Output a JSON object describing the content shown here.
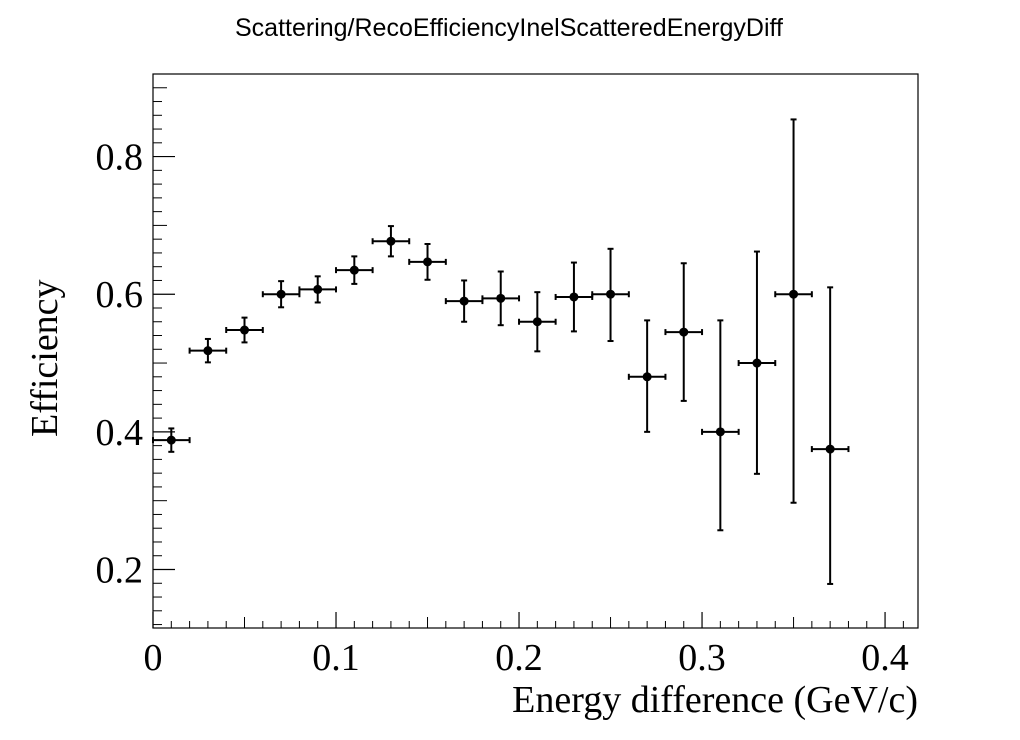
{
  "chart_data": {
    "type": "scatter",
    "title": "Scattering/RecoEfficiencyInelScatteredEnergyDiff",
    "xlabel": "Energy difference (GeV/c)",
    "ylabel": "Efficiency",
    "xlim": [
      0,
      0.418
    ],
    "ylim": [
      0.115,
      0.92
    ],
    "x_ticks": [
      0,
      0.1,
      0.2,
      0.3,
      0.4
    ],
    "x_tick_labels": [
      "0",
      "0.1",
      "0.2",
      "0.3",
      "0.4"
    ],
    "y_ticks": [
      0.2,
      0.4,
      0.6,
      0.8
    ],
    "y_tick_labels": [
      "0.2",
      "0.4",
      "0.6",
      "0.8"
    ],
    "grid": false,
    "legend": "none",
    "marker_color": "#000000",
    "points": [
      {
        "x": 0.01,
        "x_err": 0.01,
        "y": 0.388,
        "y_err_low": 0.017,
        "y_err_high": 0.017
      },
      {
        "x": 0.03,
        "x_err": 0.01,
        "y": 0.518,
        "y_err_low": 0.017,
        "y_err_high": 0.017
      },
      {
        "x": 0.05,
        "x_err": 0.01,
        "y": 0.548,
        "y_err_low": 0.018,
        "y_err_high": 0.018
      },
      {
        "x": 0.07,
        "x_err": 0.01,
        "y": 0.6,
        "y_err_low": 0.019,
        "y_err_high": 0.019
      },
      {
        "x": 0.09,
        "x_err": 0.01,
        "y": 0.607,
        "y_err_low": 0.019,
        "y_err_high": 0.019
      },
      {
        "x": 0.11,
        "x_err": 0.01,
        "y": 0.635,
        "y_err_low": 0.02,
        "y_err_high": 0.02
      },
      {
        "x": 0.13,
        "x_err": 0.01,
        "y": 0.677,
        "y_err_low": 0.022,
        "y_err_high": 0.022
      },
      {
        "x": 0.15,
        "x_err": 0.01,
        "y": 0.647,
        "y_err_low": 0.026,
        "y_err_high": 0.026
      },
      {
        "x": 0.17,
        "x_err": 0.01,
        "y": 0.59,
        "y_err_low": 0.03,
        "y_err_high": 0.03
      },
      {
        "x": 0.19,
        "x_err": 0.01,
        "y": 0.594,
        "y_err_low": 0.039,
        "y_err_high": 0.039
      },
      {
        "x": 0.21,
        "x_err": 0.01,
        "y": 0.56,
        "y_err_low": 0.043,
        "y_err_high": 0.043
      },
      {
        "x": 0.23,
        "x_err": 0.01,
        "y": 0.596,
        "y_err_low": 0.05,
        "y_err_high": 0.05
      },
      {
        "x": 0.25,
        "x_err": 0.01,
        "y": 0.6,
        "y_err_low": 0.068,
        "y_err_high": 0.066
      },
      {
        "x": 0.27,
        "x_err": 0.01,
        "y": 0.48,
        "y_err_low": 0.08,
        "y_err_high": 0.082
      },
      {
        "x": 0.29,
        "x_err": 0.01,
        "y": 0.545,
        "y_err_low": 0.1,
        "y_err_high": 0.1
      },
      {
        "x": 0.31,
        "x_err": 0.01,
        "y": 0.4,
        "y_err_low": 0.143,
        "y_err_high": 0.162
      },
      {
        "x": 0.33,
        "x_err": 0.01,
        "y": 0.5,
        "y_err_low": 0.161,
        "y_err_high": 0.162
      },
      {
        "x": 0.35,
        "x_err": 0.01,
        "y": 0.6,
        "y_err_low": 0.303,
        "y_err_high": 0.254
      },
      {
        "x": 0.37,
        "x_err": 0.01,
        "y": 0.375,
        "y_err_low": 0.196,
        "y_err_high": 0.235
      }
    ]
  }
}
